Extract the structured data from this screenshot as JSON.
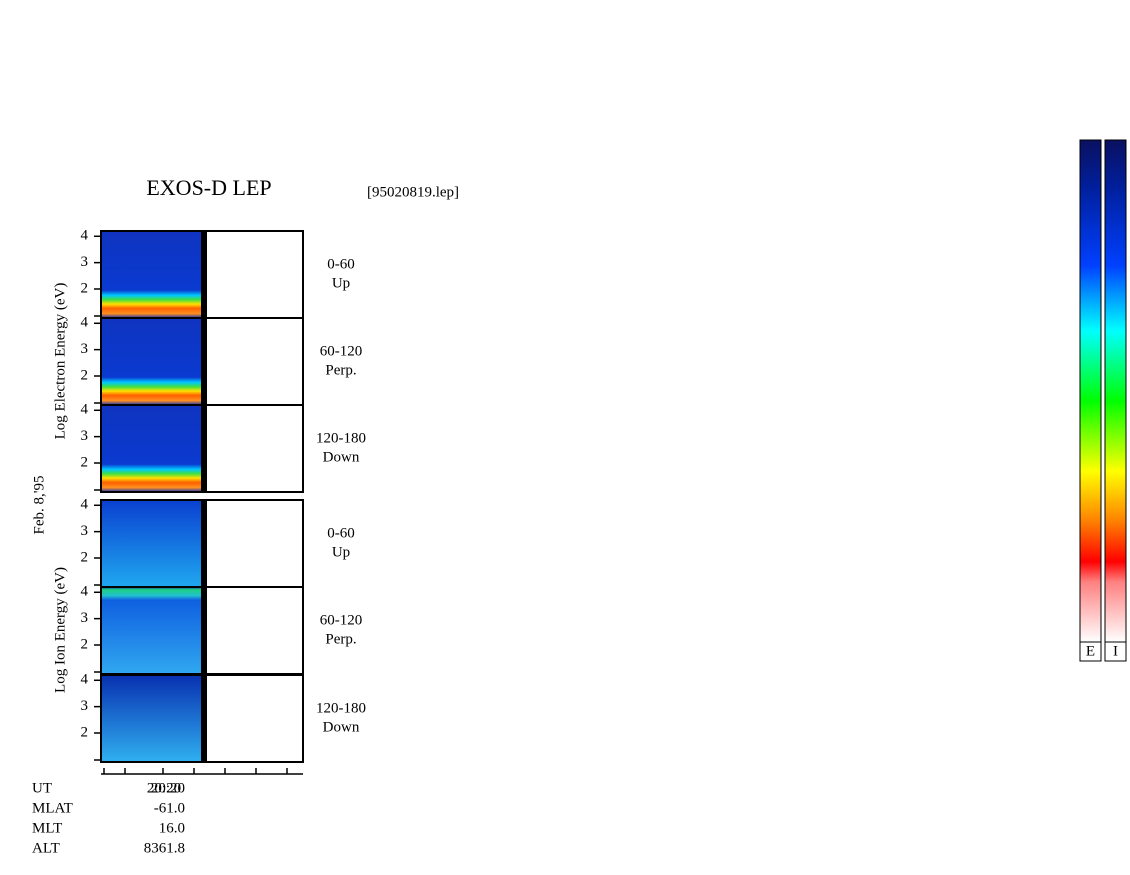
{
  "title": "EXOS-D LEP",
  "file": "[95020819.lep]",
  "date": "Feb. 8,'95",
  "groups": [
    {
      "label": "Log  Electron  Energy (eV)",
      "panels": [
        {
          "angle": "0-60",
          "direction": "Up"
        },
        {
          "angle": "60-120",
          "direction": "Perp."
        },
        {
          "angle": "120-180",
          "direction": "Down"
        }
      ]
    },
    {
      "label": "Log  Ion  Energy (eV)",
      "panels": [
        {
          "angle": "0-60",
          "direction": "Up"
        },
        {
          "angle": "60-120",
          "direction": "Perp."
        },
        {
          "angle": "120-180",
          "direction": "Down"
        }
      ]
    }
  ],
  "ylim": [
    0.9,
    4.2
  ],
  "yticks": [
    2,
    3,
    4
  ],
  "x_label": "20:20",
  "footer": [
    {
      "name": "UT",
      "value": "20:20"
    },
    {
      "name": "MLAT",
      "value": "-61.0"
    },
    {
      "name": "MLT",
      "value": "16.0"
    },
    {
      "name": "ALT",
      "value": "8361.8"
    }
  ],
  "colorbars": [
    "E",
    "I"
  ]
}
